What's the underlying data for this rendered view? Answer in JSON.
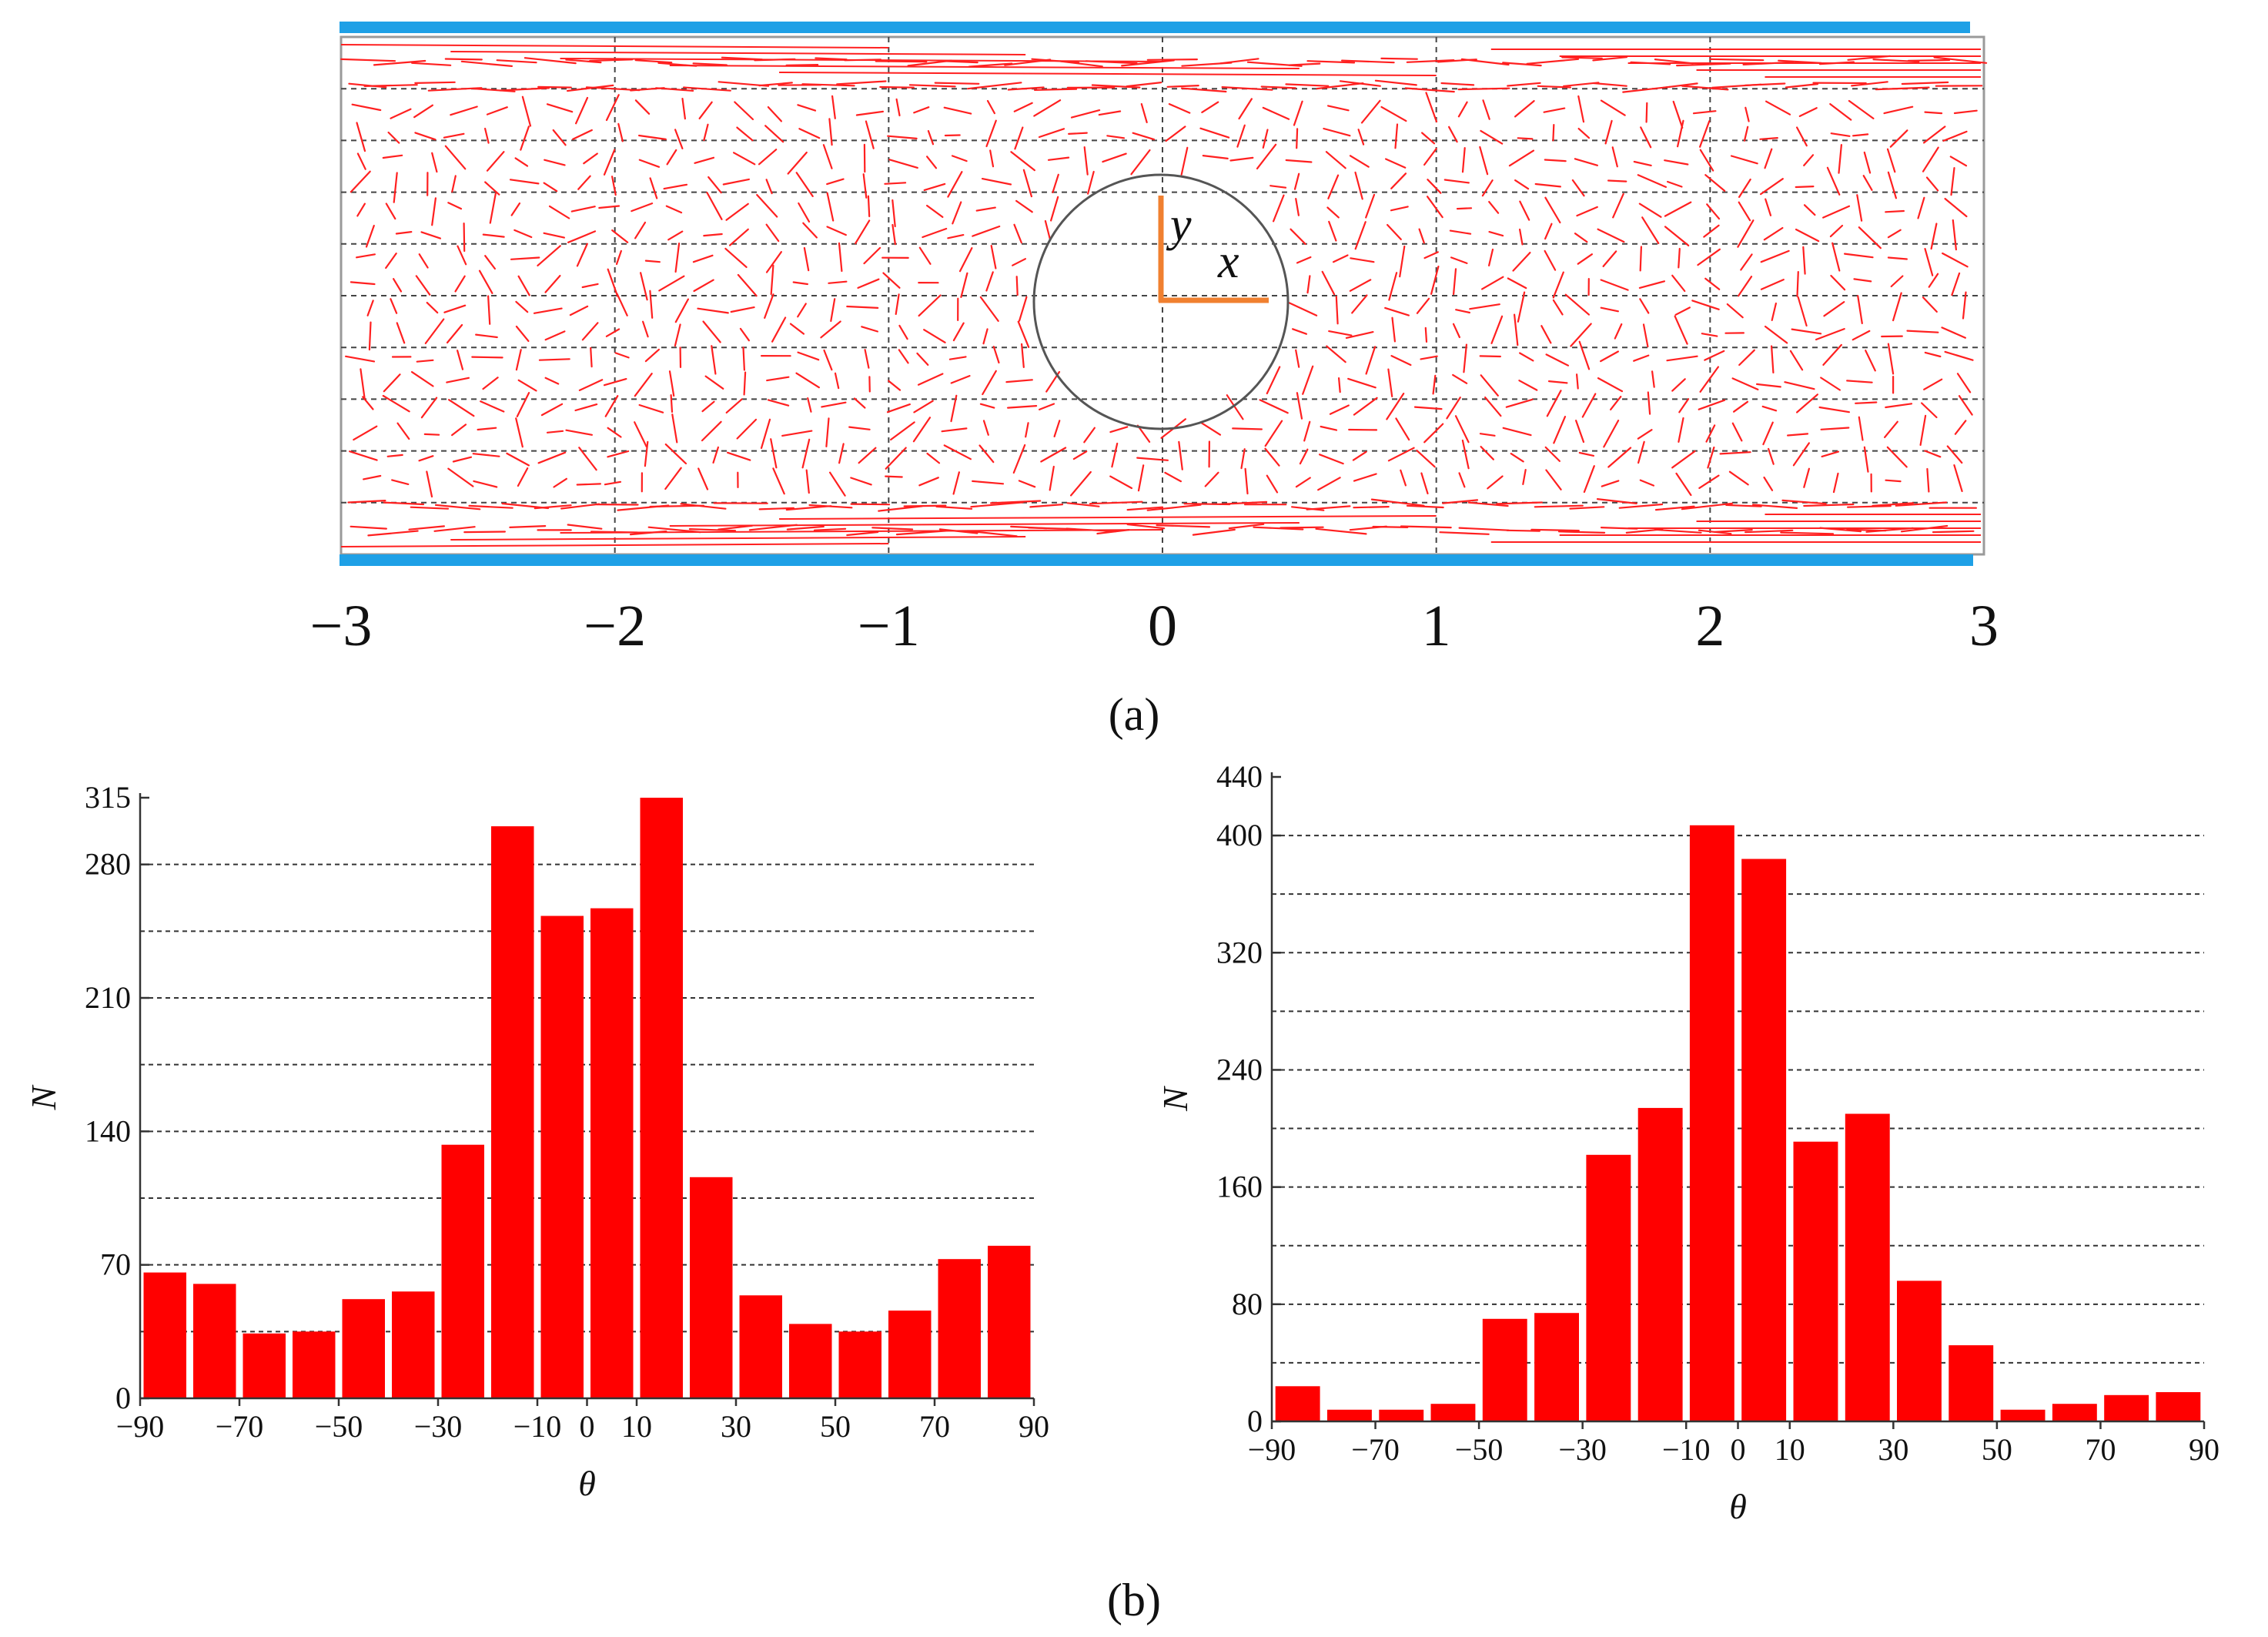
{
  "figure": {
    "panel_a_caption": "(a)",
    "panel_b_caption": "(b)",
    "axis_label_y": "y",
    "axis_label_x": "x",
    "colors": {
      "bars": "#ff0000",
      "vectors": "#ff2020",
      "walls": "#1ea0e6",
      "axes_marker": "#f08030",
      "circle": "#555555"
    }
  },
  "chart_data": [
    {
      "type": "quiver",
      "title": "",
      "xlabel": "",
      "ylabel": "",
      "xlim": [
        -3,
        3
      ],
      "x_ticks": [
        -3,
        -2,
        -1,
        0,
        1,
        2,
        3
      ],
      "x_tick_labels": [
        "−3",
        "−2",
        "−1",
        "0",
        "1",
        "2",
        "3"
      ],
      "obstacle": {
        "shape": "circle",
        "center": [
          0,
          0
        ],
        "radius": 0.48
      },
      "grid": true
    },
    {
      "type": "bar",
      "title": "",
      "xlabel": "θ",
      "ylabel": "N",
      "categories": [
        -85,
        -75,
        -65,
        -55,
        -45,
        -35,
        -25,
        -15,
        -5,
        5,
        15,
        25,
        35,
        45,
        55,
        65,
        75,
        85
      ],
      "values": [
        66,
        60,
        34,
        35,
        52,
        56,
        133,
        300,
        253,
        257,
        315,
        116,
        54,
        39,
        35,
        46,
        73,
        80
      ],
      "ylim": [
        0,
        315
      ],
      "y_ticks": [
        0,
        70,
        140,
        210,
        280,
        315
      ],
      "y_tick_labels": [
        "0",
        "70",
        "140",
        "210",
        "280",
        "315"
      ],
      "y_grid": [
        35,
        70,
        105,
        140,
        175,
        210,
        245,
        280
      ],
      "xlim": [
        -90,
        90
      ],
      "x_ticks": [
        -90,
        -70,
        -50,
        -30,
        -10,
        0,
        10,
        30,
        50,
        70,
        90
      ],
      "x_tick_labels": [
        "−90",
        "−70",
        "−50",
        "−30",
        "−10",
        "0",
        "10",
        "30",
        "50",
        "70",
        "90"
      ]
    },
    {
      "type": "bar",
      "title": "",
      "xlabel": "θ",
      "ylabel": "N",
      "categories": [
        -85,
        -75,
        -65,
        -55,
        -45,
        -35,
        -25,
        -15,
        -5,
        5,
        15,
        25,
        35,
        45,
        55,
        65,
        75,
        85
      ],
      "values": [
        24,
        8,
        8,
        12,
        70,
        74,
        182,
        214,
        407,
        384,
        191,
        210,
        96,
        52,
        8,
        12,
        18,
        20
      ],
      "ylim": [
        0,
        440
      ],
      "y_ticks": [
        0,
        80,
        160,
        240,
        320,
        400,
        440
      ],
      "y_tick_labels": [
        "0",
        "80",
        "160",
        "240",
        "320",
        "400",
        "440"
      ],
      "y_grid": [
        40,
        80,
        120,
        160,
        200,
        240,
        280,
        320,
        360,
        400
      ],
      "xlim": [
        -90,
        90
      ],
      "x_ticks": [
        -90,
        -70,
        -50,
        -30,
        -10,
        0,
        10,
        30,
        50,
        70,
        90
      ],
      "x_tick_labels": [
        "−90",
        "−70",
        "−50",
        "−30",
        "−10",
        "0",
        "10",
        "30",
        "50",
        "70",
        "90"
      ]
    }
  ]
}
